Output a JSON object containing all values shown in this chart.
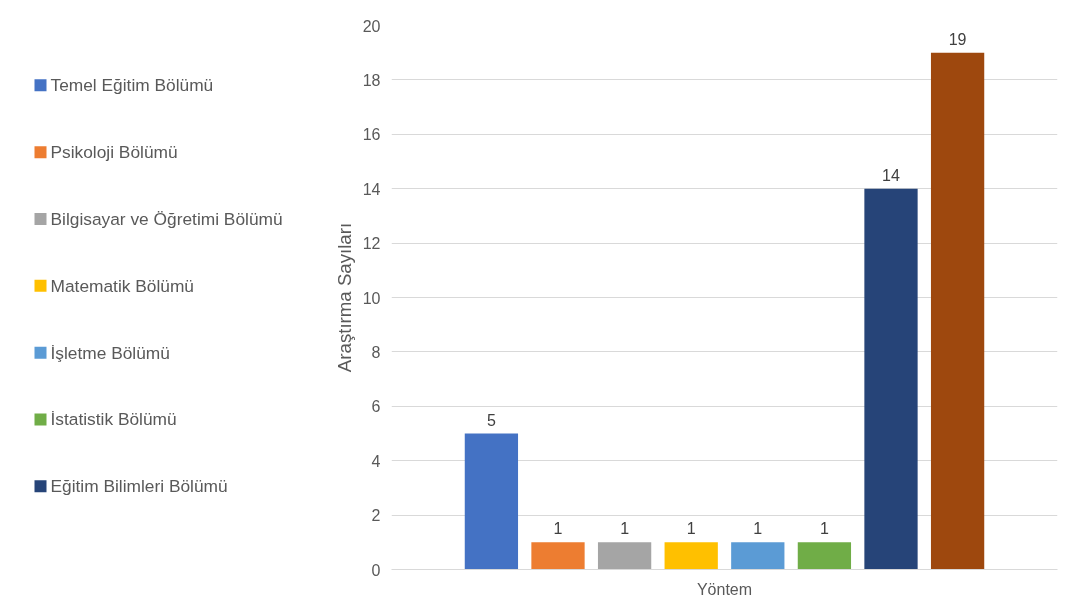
{
  "chart_data": {
    "type": "bar",
    "categories": [
      "Yöntem"
    ],
    "xlabel": null,
    "ylabel": "Araştırma Sayıları",
    "ylim": [
      0,
      20
    ],
    "yticks": [
      0,
      2,
      4,
      6,
      8,
      10,
      12,
      14,
      16,
      18,
      20
    ],
    "grid": "y",
    "legend": "left",
    "data_labels": true,
    "series": [
      {
        "name": "Temel Eğitim Bölümü",
        "color": "#4472c4",
        "values": [
          5
        ]
      },
      {
        "name": "Psikoloji Bölümü",
        "color": "#ed7d31",
        "values": [
          1
        ]
      },
      {
        "name": "Bilgisayar ve Öğretimi Bölümü",
        "color": "#a5a5a5",
        "values": [
          1
        ]
      },
      {
        "name": "Matematik Bölümü",
        "color": "#ffc000",
        "values": [
          1
        ]
      },
      {
        "name": "İşletme Bölümü",
        "color": "#5b9bd5",
        "values": [
          1
        ]
      },
      {
        "name": "İstatistik Bölümü",
        "color": "#70ad47",
        "values": [
          1
        ]
      },
      {
        "name": "Eğitim Bilimleri Bölümü",
        "color": "#264478",
        "values": [
          14
        ]
      },
      {
        "color": "#9e480e",
        "values": [
          19
        ]
      }
    ]
  }
}
